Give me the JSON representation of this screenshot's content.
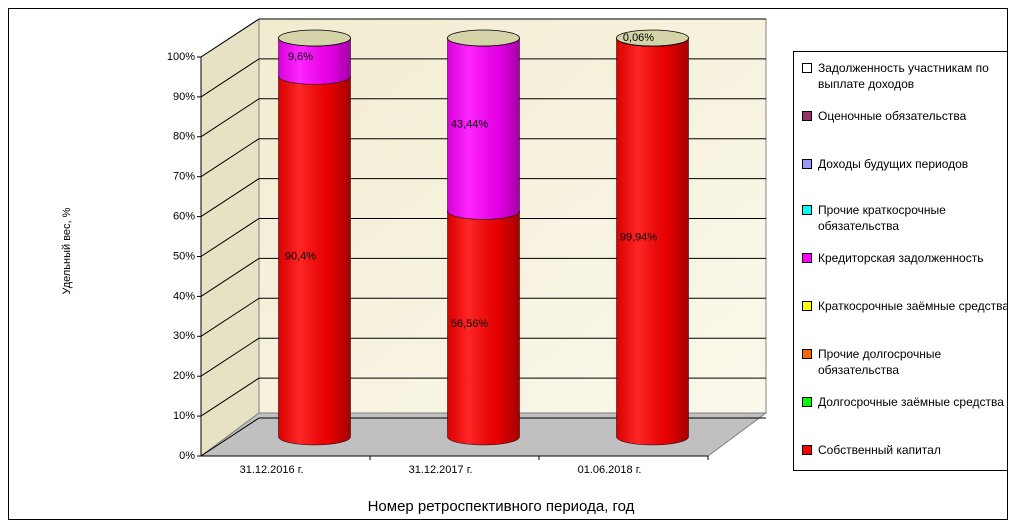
{
  "chart_data": {
    "type": "bar3d-cylinder-stacked",
    "y_axis_label": "Удельный вес, %",
    "x_axis_label": "Номер ретроспективного периода, год",
    "categories": [
      "31.12.2016 г.",
      "31.12.2017 г.",
      "01.06.2018 г."
    ],
    "ylim": [
      0,
      100
    ],
    "yticks": [
      {
        "value": 0,
        "label": "0%"
      },
      {
        "value": 10,
        "label": "10%"
      },
      {
        "value": 20,
        "label": "20%"
      },
      {
        "value": 30,
        "label": "30%"
      },
      {
        "value": 40,
        "label": "40%"
      },
      {
        "value": 50,
        "label": "50%"
      },
      {
        "value": 60,
        "label": "60%"
      },
      {
        "value": 70,
        "label": "70%"
      },
      {
        "value": 80,
        "label": "80%"
      },
      {
        "value": 90,
        "label": "90%"
      },
      {
        "value": 100,
        "label": "100%"
      }
    ],
    "grid": true,
    "legend": "right",
    "series": [
      {
        "name": "Собственный капитал",
        "color": "#ff0000",
        "values": [
          90.4,
          56.56,
          99.94
        ],
        "value_labels": [
          "90,4%",
          "56,56%",
          "99,94%"
        ]
      },
      {
        "name": "Долгосрочные заёмные средства",
        "color": "#00ff00",
        "values": [
          0,
          0,
          0
        ]
      },
      {
        "name": "Прочие долгосрочные обязательства",
        "color": "#ff6600",
        "values": [
          0,
          0,
          0
        ]
      },
      {
        "name": "Краткосрочные заёмные средства",
        "color": "#ffff00",
        "values": [
          0,
          0,
          0
        ]
      },
      {
        "name": "Кредиторская задолженность",
        "color": "#ff00ff",
        "values": [
          9.6,
          43.44,
          0.06
        ],
        "value_labels": [
          "9,6%",
          "43,44%",
          "0,06%"
        ]
      },
      {
        "name": "Прочие краткосрочные обязательства",
        "color": "#00ffff",
        "values": [
          0,
          0,
          0
        ]
      },
      {
        "name": "Доходы будущих периодов",
        "color": "#9999ff",
        "values": [
          0,
          0,
          0
        ]
      },
      {
        "name": "Оценочные обязательства",
        "color": "#993366",
        "values": [
          0,
          0,
          0
        ]
      },
      {
        "name": "Задолженность участникам по выплате доходов",
        "color": "#ffffff",
        "values": [
          0,
          0,
          0
        ]
      }
    ]
  }
}
